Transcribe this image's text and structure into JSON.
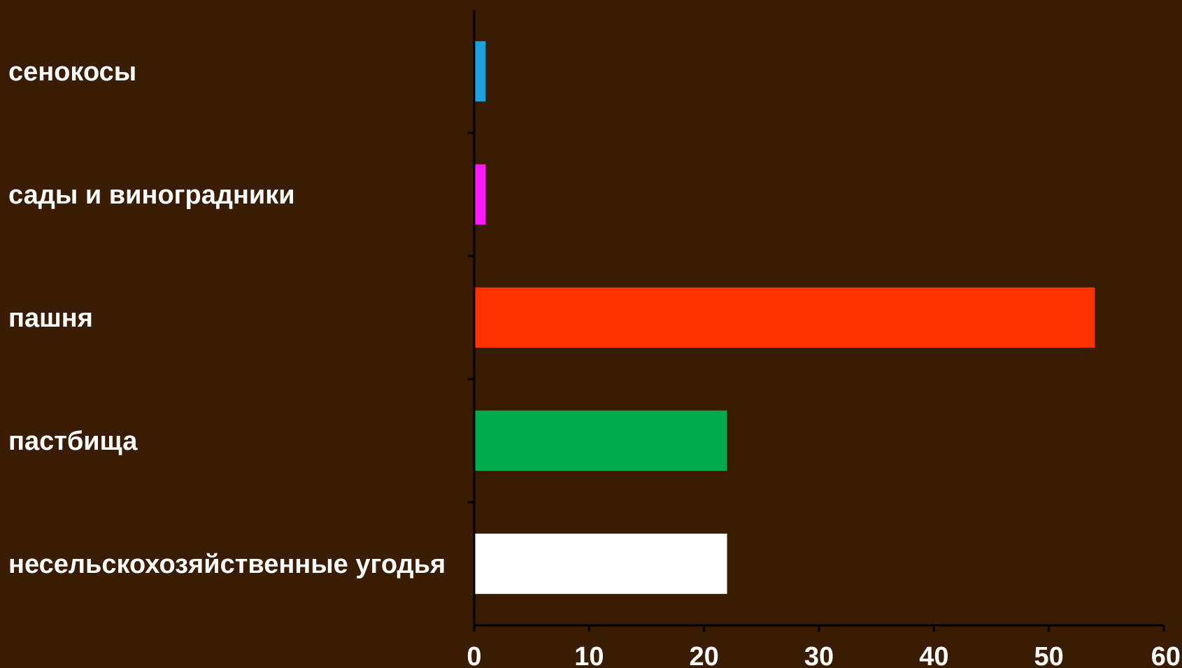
{
  "chart_data": {
    "type": "bar",
    "orientation": "horizontal",
    "categories": [
      "сенокосы",
      "сады и виноградники",
      "пашня",
      "пастбища",
      "несельскохозяйственные угодья"
    ],
    "values": [
      1,
      1,
      54,
      22,
      22
    ],
    "colors": [
      "#1aa3e0",
      "#ff17ff",
      "#ff3300",
      "#00aa4f",
      "#ffffff"
    ],
    "xticks": [
      "0",
      "10",
      "20",
      "30",
      "40",
      "50",
      "60"
    ],
    "xlim": [
      0,
      60
    ],
    "title": "",
    "xlabel": "",
    "ylabel": "",
    "grid": false,
    "legend": "none",
    "background": "#3a1c02"
  }
}
